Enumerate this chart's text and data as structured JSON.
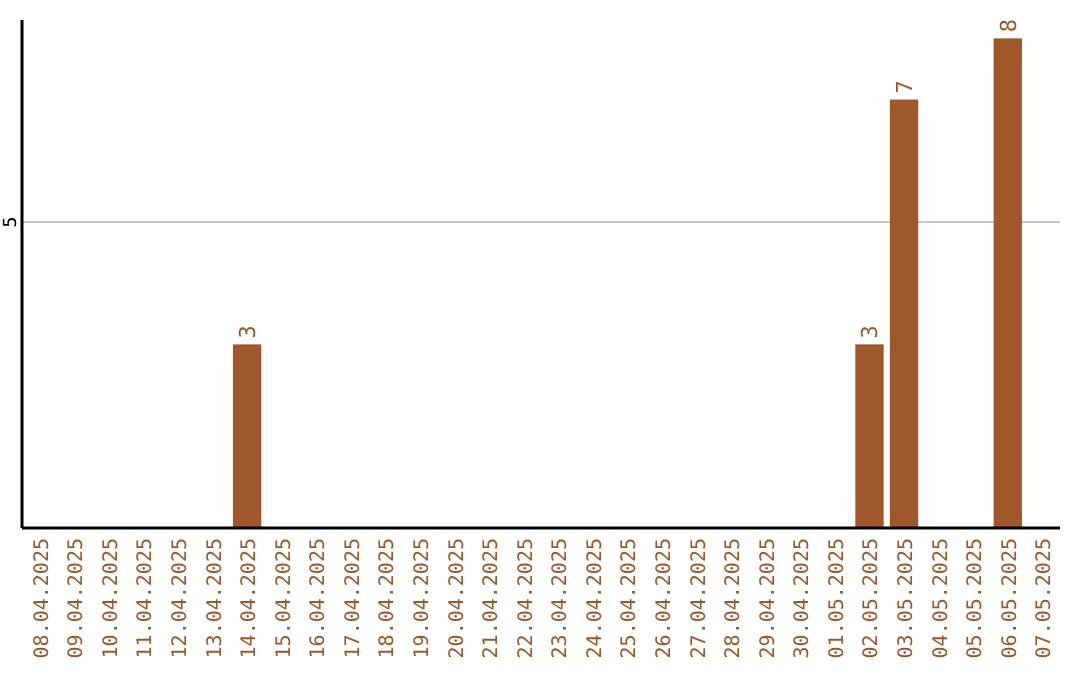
{
  "chart_data": {
    "type": "bar",
    "categories": [
      "08.04.2025",
      "09.04.2025",
      "10.04.2025",
      "11.04.2025",
      "12.04.2025",
      "13.04.2025",
      "14.04.2025",
      "15.04.2025",
      "16.04.2025",
      "17.04.2025",
      "18.04.2025",
      "19.04.2025",
      "20.04.2025",
      "21.04.2025",
      "22.04.2025",
      "23.04.2025",
      "24.04.2025",
      "25.04.2025",
      "26.04.2025",
      "27.04.2025",
      "28.04.2025",
      "29.04.2025",
      "30.04.2025",
      "01.05.2025",
      "02.05.2025",
      "03.05.2025",
      "04.05.2025",
      "05.05.2025",
      "06.05.2025",
      "07.05.2025"
    ],
    "values": [
      0,
      0,
      0,
      0,
      0,
      0,
      3,
      0,
      0,
      0,
      0,
      0,
      0,
      0,
      0,
      0,
      0,
      0,
      0,
      0,
      0,
      0,
      0,
      0,
      3,
      7,
      0,
      0,
      8,
      0
    ],
    "value_labels": [
      null,
      null,
      null,
      null,
      null,
      null,
      "3",
      null,
      null,
      null,
      null,
      null,
      null,
      null,
      null,
      null,
      null,
      null,
      null,
      null,
      null,
      null,
      null,
      null,
      "3",
      "7",
      null,
      null,
      "8",
      null
    ],
    "color": "#a0572a",
    "ylim": [
      0,
      8.3
    ],
    "yticks": [
      5
    ],
    "grid": "y"
  }
}
